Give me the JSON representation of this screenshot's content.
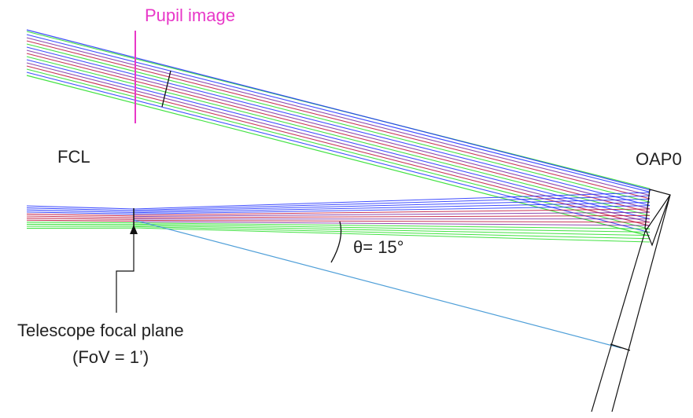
{
  "labels": {
    "pupil_image": "Pupil image",
    "fcl": "FCL",
    "oap0": "OAP0",
    "theta": "θ= 15°",
    "focal_plane_line1": "Telescope focal plane",
    "focal_plane_line2": "(FoV = 1’)"
  },
  "colors": {
    "pupil_marker": "#e838c8",
    "ray_blue": "#1f2fff",
    "ray_green": "#22dd22",
    "ray_red": "#c0143c",
    "ray_purple": "#7a2aa0",
    "chief_ray": "#4f9fd8",
    "outline": "#111111"
  }
}
